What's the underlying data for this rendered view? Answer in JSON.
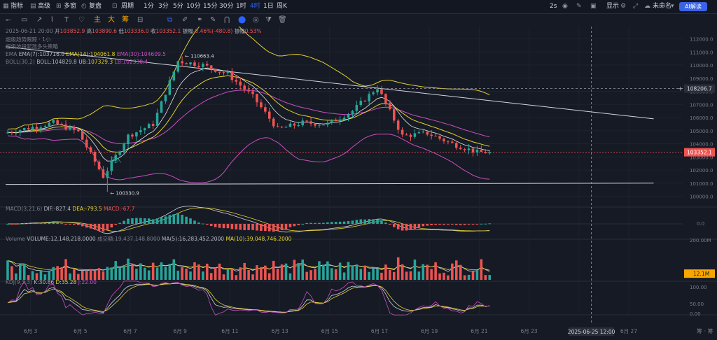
{
  "toolbar": {
    "indicators": "指标",
    "advanced": "高级",
    "multi_chart": "多窗",
    "replay": "复盘",
    "period": "周期",
    "intervals": [
      "1分",
      "3分",
      "5分",
      "10分",
      "15分",
      "30分",
      "1时",
      "4时",
      "1日",
      "周K"
    ],
    "active_interval": "4时",
    "refresh": "2s",
    "display": "显示",
    "unnamed": "未命名",
    "ai_button": "AI解读",
    "tags": [
      "主",
      "大",
      "筹"
    ]
  },
  "colors": {
    "up": "#26a69a",
    "down": "#ef5350",
    "ema7": "#b2b5be",
    "ema14": "#e3d12a",
    "ema30": "#c94fc0",
    "boll_mid": "#9c27b0"
  },
  "legend": {
    "ohlc_prefix": "2025-06-21 20:00",
    "open_label": "开",
    "open": "103852.9",
    "high_label": "高",
    "high": "103890.6",
    "low_label": "低",
    "low": "103336.0",
    "close_label": "收",
    "close": "103352.1",
    "change_label": "振幅",
    "change": "-0.46%(-480.8)",
    "amp_label": "振幅",
    "amp": "0.53%",
    "line2": "超级趋势跟踪 · 1小",
    "line3": "超级波段起涨多头策略",
    "ema_label": "EMA",
    "ema7": "EMA(7):103716.0",
    "ema14": "EMA(14):104061.8",
    "ema30": "EMA(30):104609.5",
    "boll_label": "BOLL(30,2)",
    "boll_mid": "BOLL:104829.8",
    "boll_ub": "UB:107329.3",
    "boll_lb": "LB:102330.4",
    "macd_label": "MACD(3,21,6)",
    "macd_dif": "DIF:-827.4",
    "macd_dea": "DEA:-793.5",
    "macd_val": "MACD:-67.7",
    "vol_label": "Volume",
    "vol_value": "VOLUME:12,148,218.0000",
    "vol_amount": "成交额:19,437,148.8000",
    "vol_ma5": "MA(5):16,283,452.2000",
    "vol_ma10": "MA(10):39,048,746.2000",
    "kdj_label": "KDJ(9,3,3)",
    "kdj_k": "K:30.86",
    "kdj_d": "D:35.28",
    "kdj_j": "J:22.00"
  },
  "annotations": {
    "high_mark": "110663.4",
    "low_mark": "100330.9",
    "buy_text": "买入",
    "crosshair_price": "108206.7",
    "last_price": "103352.1",
    "vol_last": "12.1M",
    "crosshair_date": "2025-06-25 12:00",
    "bottom_right": "筹 · 筹"
  },
  "chart_data": {
    "type": "candlestick",
    "symbol_interval": "4时",
    "price_axis": {
      "ticks": [
        112000,
        111000,
        110000,
        109000,
        108000,
        107000,
        106000,
        105000,
        104000,
        103000,
        102000,
        101000,
        100000
      ],
      "labels": [
        "112000.0",
        "111000.0",
        "110000.0",
        "109000.0",
        "108000.0",
        "107000.0",
        "106000.0",
        "105000.0",
        "104000.0",
        "103000.0",
        "102000.0",
        "101000.0",
        "100000.0"
      ]
    },
    "macd_axis": {
      "labels": [
        "0.0"
      ]
    },
    "volume_axis": {
      "labels": [
        "200.00M"
      ]
    },
    "kdj_axis": {
      "labels": [
        "100.00",
        "50.00",
        "0.00"
      ]
    },
    "dates": [
      "6月 3",
      "6月 5",
      "6月 7",
      "6月 9",
      "6月 11",
      "6月 13",
      "6月 15",
      "6月 17",
      "6月 19",
      "6月 21",
      "6月 23",
      "6月 25",
      "6月 27"
    ],
    "series_points": [
      [
        "6月 2",
        104800
      ],
      [
        "6月 3",
        105200
      ],
      [
        "6月 4",
        105600
      ],
      [
        "6月 5",
        104900
      ],
      [
        "6月 6",
        101500
      ],
      [
        "6月 7",
        104600
      ],
      [
        "6月 8",
        105500
      ],
      [
        "6月 9",
        110300
      ],
      [
        "6月 10",
        110000
      ],
      [
        "6月 11",
        109300
      ],
      [
        "6月 12",
        107600
      ],
      [
        "6月 13",
        105100
      ],
      [
        "6月 14",
        105600
      ],
      [
        "6月 15",
        105500
      ],
      [
        "6月 16",
        106500
      ],
      [
        "6月 17",
        108300
      ],
      [
        "6月 18",
        104600
      ],
      [
        "6月 19",
        104800
      ],
      [
        "6月 20",
        104000
      ],
      [
        "6月 21",
        103352
      ]
    ],
    "trend_lines": [
      {
        "name": "upper",
        "from": [
          "6月 2",
          111400
        ],
        "to": [
          "6月 28",
          105900
        ]
      },
      {
        "name": "lower",
        "from": [
          "6月 2",
          100900
        ],
        "to": [
          "6月 28",
          101000
        ]
      }
    ]
  }
}
